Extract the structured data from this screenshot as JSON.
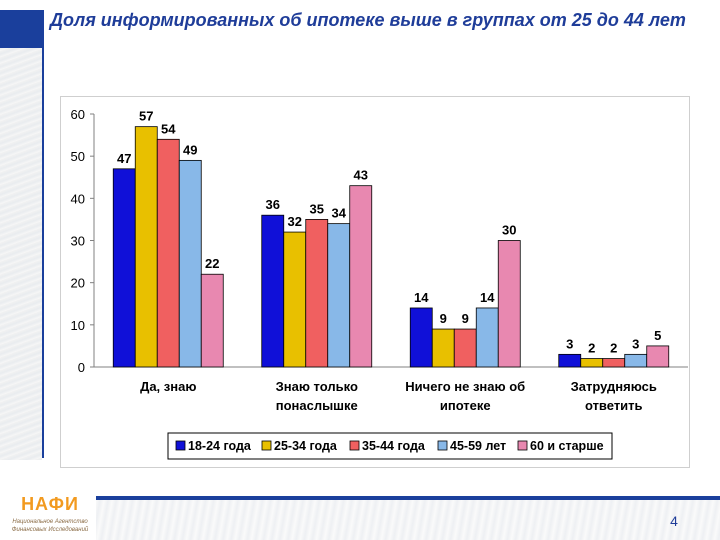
{
  "slide": {
    "title": "Доля информированных об ипотеке выше в группах от 25 до 44 лет",
    "page_number": "4"
  },
  "logo": {
    "title": "НАФИ",
    "subtitle_line1": "Национальное Агентство",
    "subtitle_line2": "Финансовых Исследований"
  },
  "chart_data": {
    "type": "bar",
    "categories": [
      "Да, знаю",
      "Знаю только понаслышке",
      "Ничего не знаю об ипотеке",
      "Затрудняюсь ответить"
    ],
    "category_lines": [
      [
        "Да, знаю"
      ],
      [
        "Знаю только",
        "понаслышке"
      ],
      [
        "Ничего не знаю об",
        "ипотеке"
      ],
      [
        "Затрудняюсь",
        "ответить"
      ]
    ],
    "series": [
      {
        "name": "18-24 года",
        "values": [
          47,
          36,
          14,
          3
        ],
        "color": "#1010d8"
      },
      {
        "name": "25-34 года",
        "values": [
          57,
          32,
          9,
          2
        ],
        "color": "#e8c000"
      },
      {
        "name": "35-44 года",
        "values": [
          54,
          35,
          9,
          2
        ],
        "color": "#f06060"
      },
      {
        "name": "45-59 лет",
        "values": [
          49,
          34,
          14,
          3
        ],
        "color": "#88b8e8"
      },
      {
        "name": "60 и старше",
        "values": [
          22,
          43,
          30,
          5
        ],
        "color": "#e888b0"
      }
    ],
    "y_ticks": [
      0,
      10,
      20,
      30,
      40,
      50,
      60
    ],
    "ylim": [
      0,
      60
    ],
    "grid": false,
    "legend_position": "bottom",
    "data_labels": true
  }
}
